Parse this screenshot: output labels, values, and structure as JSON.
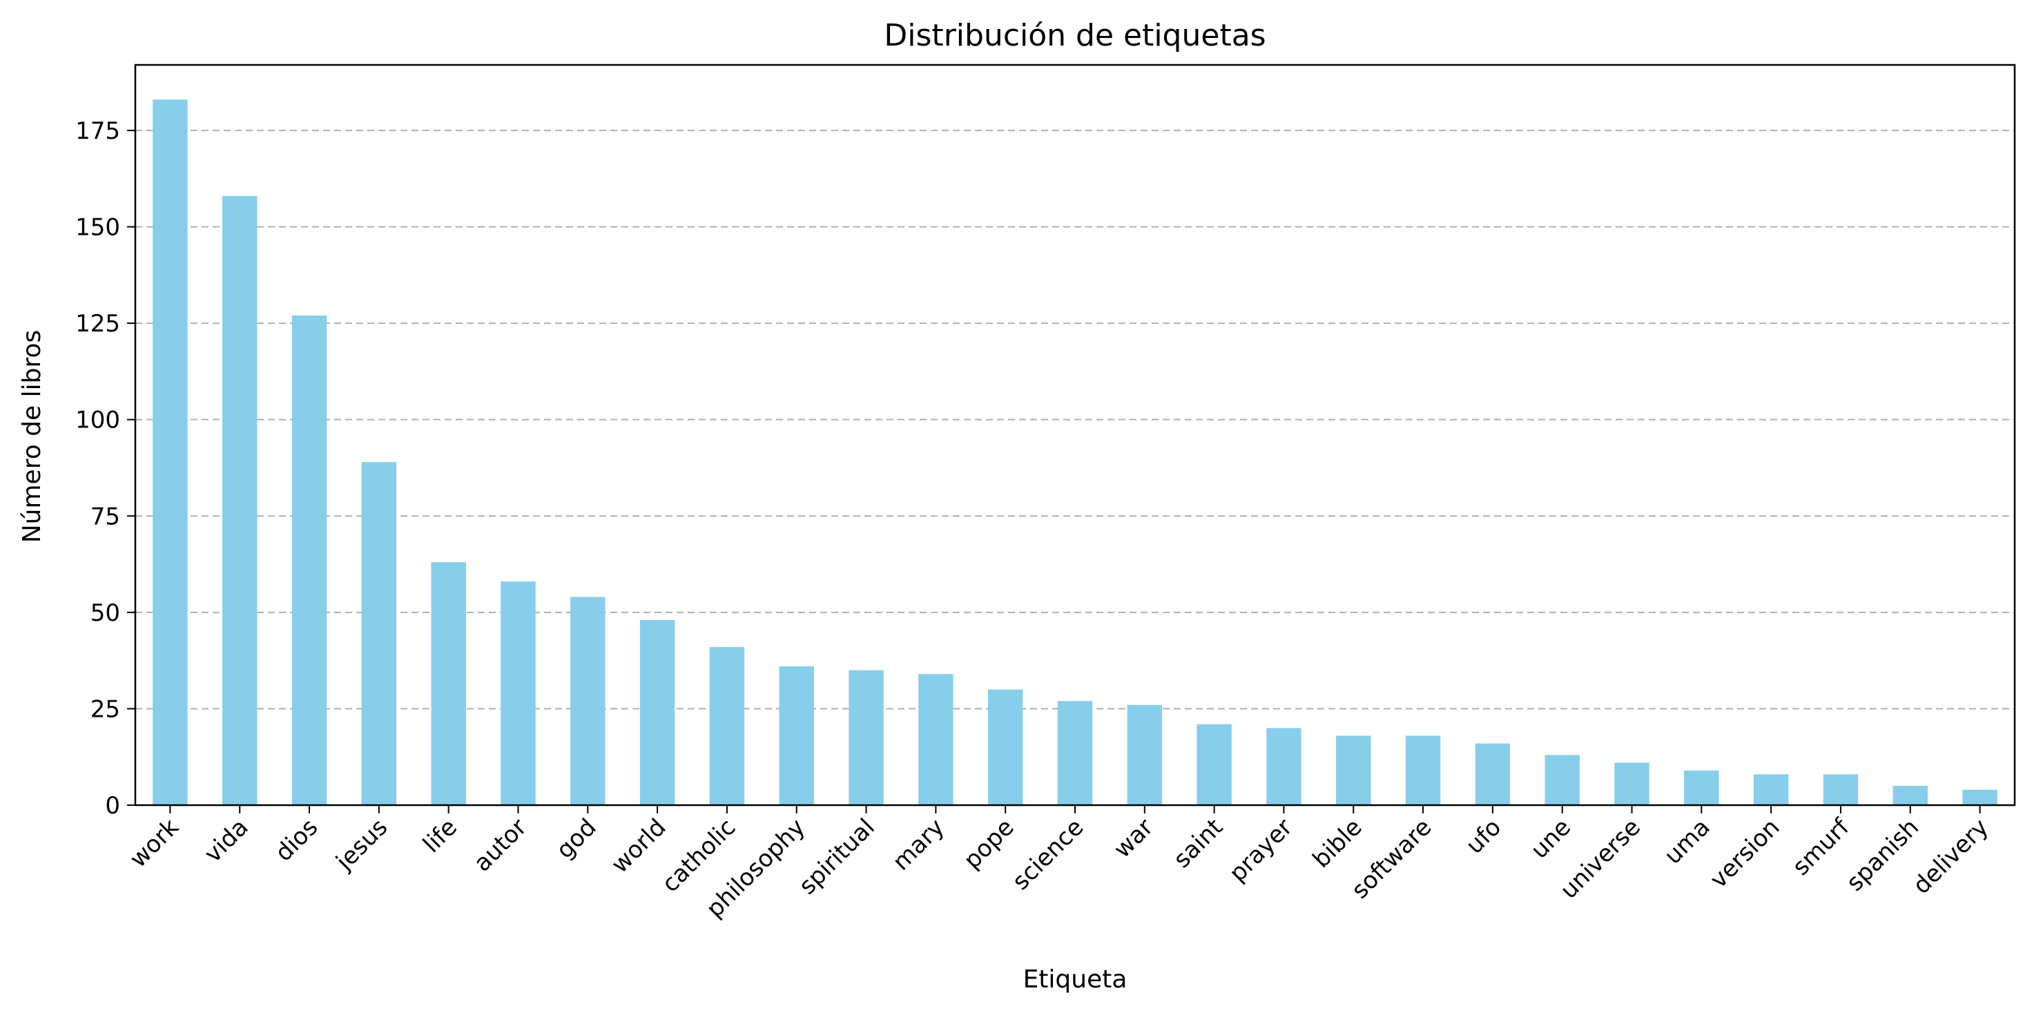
{
  "chart_data": {
    "type": "bar",
    "title": "Distribución de etiquetas",
    "xlabel": "Etiqueta",
    "ylabel": "Número de libros",
    "categories": [
      "work",
      "vida",
      "dios",
      "jesus",
      "life",
      "autor",
      "god",
      "world",
      "catholic",
      "philosophy",
      "spiritual",
      "mary",
      "pope",
      "science",
      "war",
      "saint",
      "prayer",
      "bible",
      "software",
      "ufo",
      "une",
      "universe",
      "uma",
      "version",
      "smurf",
      "spanish",
      "delivery"
    ],
    "values": [
      183,
      158,
      127,
      89,
      63,
      58,
      54,
      48,
      41,
      36,
      35,
      34,
      30,
      27,
      26,
      21,
      20,
      18,
      18,
      16,
      13,
      11,
      9,
      8,
      8,
      5,
      4
    ],
    "yticks": [
      0,
      25,
      50,
      75,
      100,
      125,
      150,
      175
    ],
    "ylim": [
      0,
      192
    ],
    "grid": "y-dashed",
    "bar_color": "#87ceeb",
    "legend": "none"
  }
}
